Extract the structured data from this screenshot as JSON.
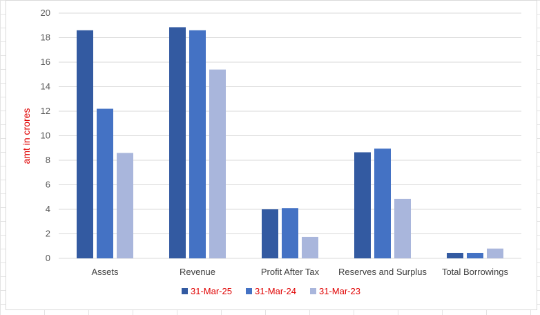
{
  "chart_data": {
    "type": "bar",
    "title": "",
    "xlabel": "",
    "ylabel": "amt in crores",
    "ylim": [
      0,
      20
    ],
    "yticks": [
      0,
      2,
      4,
      6,
      8,
      10,
      12,
      14,
      16,
      18,
      20
    ],
    "grid": true,
    "legend_position": "bottom",
    "categories": [
      "Assets",
      "Revenue",
      "Profit After Tax",
      "Reserves and Surplus",
      "Total Borrowings"
    ],
    "series": [
      {
        "name": "31-Mar-25",
        "color": "#335aa1",
        "values": [
          18.6,
          18.85,
          4.0,
          8.65,
          0.45
        ]
      },
      {
        "name": "31-Mar-24",
        "color": "#4472c4",
        "values": [
          12.2,
          18.6,
          4.1,
          8.95,
          0.45
        ]
      },
      {
        "name": "31-Mar-23",
        "color": "#a9b6dc",
        "values": [
          8.6,
          15.4,
          1.75,
          4.85,
          0.8
        ]
      }
    ]
  }
}
